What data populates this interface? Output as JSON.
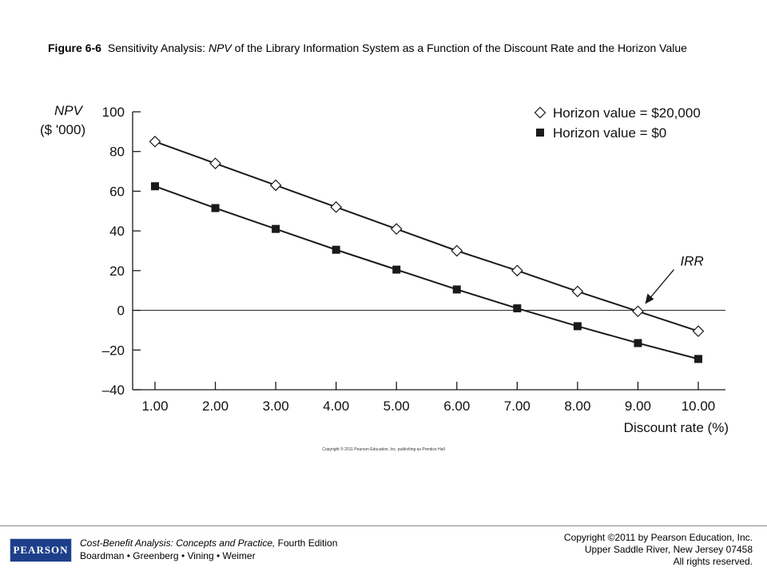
{
  "caption": {
    "figure_label": "Figure 6-6",
    "text_before": "Sensitivity Analysis: ",
    "text_italic": "NPV",
    "text_after": " of the Library Information System as a Function of the Discount Rate and the Horizon Value"
  },
  "chart_data": {
    "type": "line",
    "x": [
      1,
      2,
      3,
      4,
      5,
      6,
      7,
      8,
      9,
      10
    ],
    "x_tick_labels": [
      "1.00",
      "2.00",
      "3.00",
      "4.00",
      "5.00",
      "6.00",
      "7.00",
      "8.00",
      "9.00",
      "10.00"
    ],
    "xlim": [
      1,
      10
    ],
    "xlabel": "Discount rate (%)",
    "ylabel_line1": "NPV",
    "ylabel_line2": "($ '000)",
    "ylim": [
      -40,
      100
    ],
    "y_ticks": [
      100,
      80,
      60,
      40,
      20,
      0,
      -20,
      -40
    ],
    "y_tick_labels": [
      "100",
      "80",
      "60",
      "40",
      "20",
      "0",
      "–20",
      "–40"
    ],
    "grid": false,
    "zero_line": true,
    "legend_position": "top-right",
    "series": [
      {
        "name": "Horizon value = $20,000",
        "marker": "open-diamond",
        "values": [
          85,
          74,
          63,
          52,
          41,
          30,
          20,
          9.5,
          -0.5,
          -10.5
        ]
      },
      {
        "name": "Horizon value = $0",
        "marker": "filled-square",
        "values": [
          62.5,
          51.5,
          41,
          30.5,
          20.5,
          10.5,
          1,
          -8,
          -16.5,
          -24.5
        ]
      }
    ],
    "annotations": [
      {
        "text": "IRR",
        "x": 9,
        "y": 0
      }
    ],
    "copyright_note": "Copyright © 2011 Pearson Education, Inc. publishing as Prentice Hall"
  },
  "footer": {
    "logo_text": "PEARSON",
    "book_title": "Cost-Benefit Analysis: Concepts and Practice,",
    "book_edition": " Fourth Edition",
    "authors": "Boardman • Greenberg • Vining • Weimer",
    "copyright_line1": "Copyright ©2011 by Pearson Education, Inc.",
    "copyright_line2": "Upper Saddle River, New Jersey 07458",
    "copyright_line3": "All rights reserved."
  },
  "colors": {
    "line": "#1a1a1a",
    "marker_fill": "#1a1a1a",
    "logo_bg": "#1d3f8a"
  }
}
